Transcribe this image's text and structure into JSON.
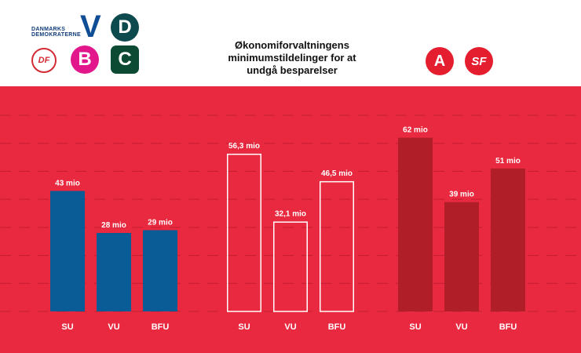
{
  "title_lines": [
    "Økonomiforvaltningens",
    "minimumstildelinger for at",
    "undgå besparelser"
  ],
  "logos": {
    "danske_demokraterne_line1": "DANMARKS",
    "danske_demokraterne_line2": "DEMOKRATERNE",
    "df": "DF",
    "v": "V",
    "d": "D",
    "b": "B",
    "c": "C",
    "a": "A",
    "sf": "SF"
  },
  "colors": {
    "background_red": "#e8293f",
    "group1_bar": "#0a5c96",
    "group2_bar_outline": "#ffffff",
    "group3_bar": "#b01e28",
    "grid": "#c41e33",
    "v_blue": "#0f4d94",
    "d_teal": "#0d4a4e",
    "b_magenta": "#e2178c",
    "c_green": "#0c4a33",
    "a_red": "#e41e2e",
    "sf_red": "#e41e2e",
    "df_red": "#d42a34"
  },
  "chart_data": {
    "type": "bar",
    "title": "Økonomiforvaltningens minimumstildelinger for at undgå besparelser",
    "ylim": [
      0,
      70
    ],
    "grid": true,
    "groups": [
      {
        "categories": [
          "SU",
          "VU",
          "BFU"
        ],
        "values": [
          43,
          28,
          29
        ],
        "labels": [
          "43 mio",
          "28 mio",
          "29 mio"
        ],
        "style": "filled-blue"
      },
      {
        "categories": [
          "SU",
          "VU",
          "BFU"
        ],
        "values": [
          56.3,
          32.1,
          46.5
        ],
        "labels": [
          "56,3 mio",
          "32,1 mio",
          "46,5 mio"
        ],
        "style": "outline-white"
      },
      {
        "categories": [
          "SU",
          "VU",
          "BFU"
        ],
        "values": [
          62,
          39,
          51
        ],
        "labels": [
          "62 mio",
          "39 mio",
          "51 mio"
        ],
        "style": "filled-darkred"
      }
    ]
  }
}
